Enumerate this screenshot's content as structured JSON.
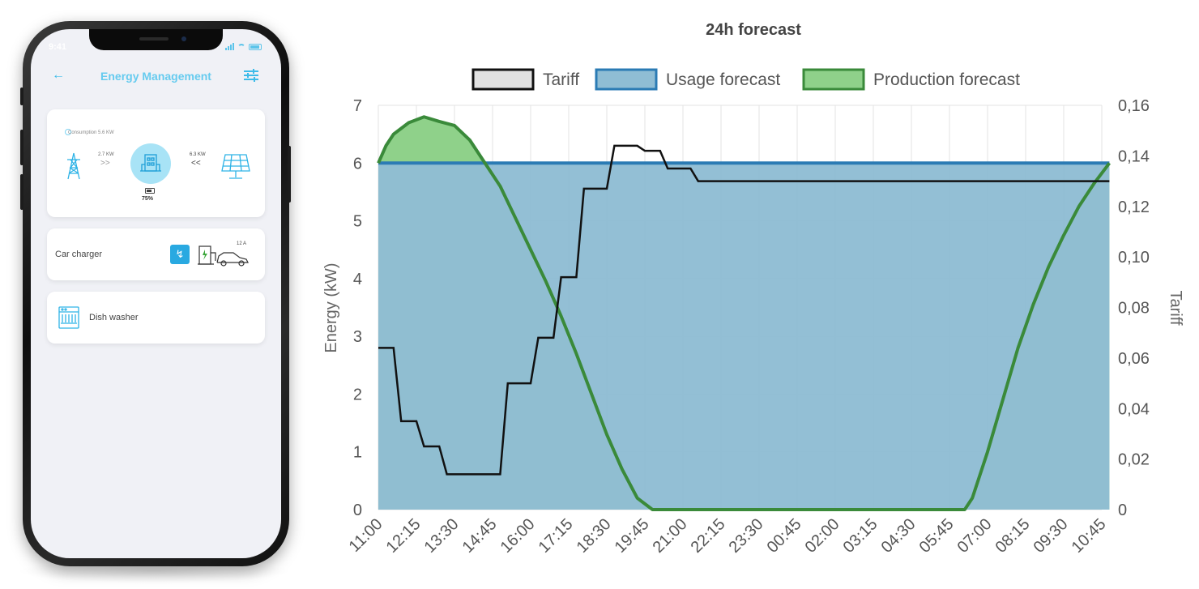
{
  "phone": {
    "status_time": "9:41",
    "app_title": "Energy Management",
    "consumption_text": "Consumption 5.6 KW",
    "flow_left_kw": "2.7 KW",
    "flow_right_kw": "6.3 KW",
    "battery_percent": "75%",
    "car_charger_label": "Car charger",
    "charger_amps": "12 A",
    "dish_washer_label": "Dish washer",
    "accent_color": "#29a9e1"
  },
  "chart_data": {
    "type": "area",
    "title": "24h forecast",
    "ylabel": "Energy (kW)",
    "y2label": "Tariff",
    "ylim": [
      0,
      7
    ],
    "y2lim": [
      0,
      0.16
    ],
    "y_ticks": [
      "0",
      "1",
      "2",
      "3",
      "4",
      "5",
      "6",
      "7"
    ],
    "y2_ticks": [
      "0",
      "0,02",
      "0,04",
      "0,06",
      "0,08",
      "0,10",
      "0,12",
      "0,14",
      "0,16"
    ],
    "x_ticks": [
      "11:00",
      "12:15",
      "13:30",
      "14:45",
      "16:00",
      "17:15",
      "18:30",
      "19:45",
      "21:00",
      "22:15",
      "23:30",
      "00:45",
      "02:00",
      "03:15",
      "04:30",
      "05:45",
      "07:00",
      "08:15",
      "09:30",
      "10:45"
    ],
    "x_minutes_span": 1440,
    "grid": true,
    "legend_placement": "top-center",
    "series": [
      {
        "name": "Tariff",
        "axis": "right",
        "style": "step-line",
        "color": "#111111",
        "x": [
          0,
          30,
          45,
          75,
          90,
          120,
          135,
          180,
          240,
          255,
          300,
          315,
          345,
          360,
          390,
          405,
          450,
          465,
          510,
          525,
          555,
          570,
          615,
          630,
          660,
          675,
          705,
          720,
          1440
        ],
        "values": [
          0.064,
          0.064,
          0.035,
          0.035,
          0.025,
          0.025,
          0.014,
          0.014,
          0.014,
          0.05,
          0.05,
          0.068,
          0.068,
          0.092,
          0.092,
          0.127,
          0.127,
          0.144,
          0.144,
          0.142,
          0.142,
          0.135,
          0.135,
          0.13,
          0.13,
          0.13,
          0.13,
          0.13,
          0.13
        ]
      },
      {
        "name": "Usage forecast",
        "axis": "left",
        "style": "area",
        "color": "#2b7bb4",
        "fill": "#8fbdd4",
        "x": [
          0,
          1440
        ],
        "values": [
          6,
          6
        ]
      },
      {
        "name": "Production forecast",
        "axis": "left",
        "style": "area",
        "color": "#3a8a3a",
        "fill": "#8fd18a",
        "x": [
          0,
          15,
          30,
          60,
          90,
          120,
          150,
          180,
          210,
          240,
          270,
          300,
          330,
          360,
          390,
          420,
          450,
          480,
          510,
          540,
          570,
          585,
          600,
          1140,
          1155,
          1170,
          1200,
          1230,
          1260,
          1290,
          1320,
          1350,
          1380,
          1410,
          1440
        ],
        "values": [
          6.0,
          6.3,
          6.5,
          6.7,
          6.8,
          6.72,
          6.65,
          6.4,
          6.0,
          5.6,
          5.05,
          4.5,
          3.95,
          3.35,
          2.7,
          2.0,
          1.3,
          0.7,
          0.2,
          0.0,
          0.0,
          0.0,
          0.0,
          0.0,
          0.0,
          0.2,
          1.0,
          1.9,
          2.8,
          3.55,
          4.2,
          4.75,
          5.25,
          5.65,
          6.0
        ]
      }
    ]
  }
}
